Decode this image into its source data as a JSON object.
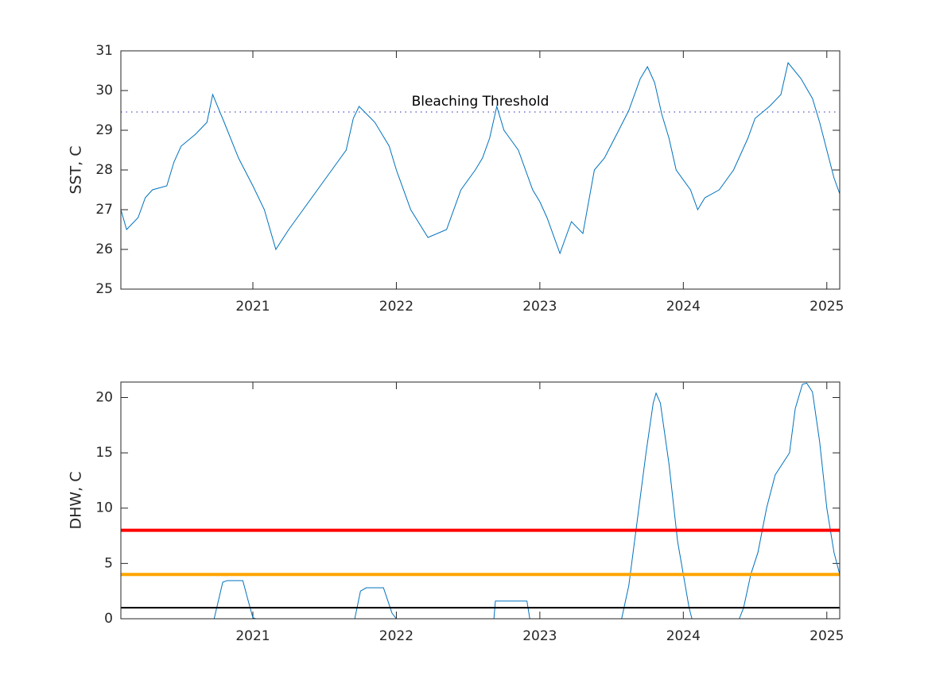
{
  "chart_data": [
    {
      "type": "line",
      "ylabel": "SST, C",
      "x": [
        2020.08,
        2020.12,
        2020.2,
        2020.25,
        2020.3,
        2020.4,
        2020.45,
        2020.5,
        2020.6,
        2020.68,
        2020.72,
        2020.8,
        2020.9,
        2021.0,
        2021.08,
        2021.16,
        2021.25,
        2021.35,
        2021.45,
        2021.55,
        2021.65,
        2021.7,
        2021.74,
        2021.85,
        2021.95,
        2022.0,
        2022.1,
        2022.22,
        2022.35,
        2022.45,
        2022.55,
        2022.6,
        2022.65,
        2022.7,
        2022.75,
        2022.85,
        2022.95,
        2023.0,
        2023.05,
        2023.14,
        2023.22,
        2023.3,
        2023.38,
        2023.45,
        2023.55,
        2023.62,
        2023.7,
        2023.75,
        2023.8,
        2023.85,
        2023.9,
        2023.95,
        2024.05,
        2024.1,
        2024.15,
        2024.25,
        2024.35,
        2024.45,
        2024.5,
        2024.6,
        2024.68,
        2024.73,
        2024.82,
        2024.9,
        2024.95,
        2025.0,
        2025.05,
        2025.09
      ],
      "series": [
        {
          "color": "#0072bd",
          "values": [
            27.0,
            26.5,
            26.8,
            27.3,
            27.5,
            27.6,
            28.2,
            28.6,
            28.9,
            29.2,
            29.9,
            29.2,
            28.3,
            27.6,
            27.0,
            26.0,
            26.5,
            27.0,
            27.5,
            28.0,
            28.5,
            29.3,
            29.6,
            29.2,
            28.6,
            28.0,
            27.0,
            26.3,
            26.5,
            27.5,
            28.0,
            28.3,
            28.8,
            29.6,
            29.0,
            28.5,
            27.5,
            27.2,
            26.8,
            25.9,
            26.7,
            26.4,
            28.0,
            28.3,
            29.0,
            29.5,
            30.3,
            30.6,
            30.2,
            29.4,
            28.8,
            28.0,
            27.5,
            27.0,
            27.3,
            27.5,
            28.0,
            28.8,
            29.3,
            29.6,
            29.9,
            30.7,
            30.3,
            29.8,
            29.2,
            28.5,
            27.8,
            27.4
          ]
        }
      ],
      "threshold": {
        "value": 29.46,
        "label": "Bleaching Threshold",
        "color": "#7070d0"
      },
      "xlim": [
        2020.08,
        2025.09
      ],
      "xticks": [
        2021,
        2022,
        2023,
        2024,
        2025
      ],
      "ylim": [
        25,
        31
      ],
      "yticks": [
        25,
        26,
        27,
        28,
        29,
        30,
        31
      ]
    },
    {
      "type": "line",
      "ylabel": "DHW, C",
      "x": [
        2020.08,
        2020.73,
        2020.79,
        2020.82,
        2020.93,
        2020.97,
        2021.0,
        2021.02,
        2021.71,
        2021.75,
        2021.79,
        2021.91,
        2021.97,
        2022.0,
        2022.68,
        2022.69,
        2022.91,
        2022.93,
        2023.57,
        2023.62,
        2023.68,
        2023.74,
        2023.79,
        2023.81,
        2023.84,
        2023.9,
        2023.96,
        2024.0,
        2024.04,
        2024.06,
        2024.39,
        2024.42,
        2024.47,
        2024.52,
        2024.58,
        2024.64,
        2024.7,
        2024.74,
        2024.78,
        2024.83,
        2024.86,
        2024.9,
        2024.95,
        2025.0,
        2025.05,
        2025.09
      ],
      "series": [
        {
          "color": "#0072bd",
          "values": [
            0,
            0,
            3.3,
            3.45,
            3.45,
            1.5,
            0.1,
            0,
            0,
            2.5,
            2.8,
            2.8,
            0.5,
            0,
            0,
            1.6,
            1.6,
            0,
            0,
            3,
            9,
            15,
            19.5,
            20.4,
            19.5,
            14,
            7,
            4,
            1,
            0,
            0,
            1,
            4,
            6,
            10,
            13,
            14.2,
            15,
            19,
            21.2,
            21.3,
            20.5,
            16,
            10,
            6,
            4
          ]
        }
      ],
      "hlines": [
        {
          "value": 8,
          "color": "#ff0000"
        },
        {
          "value": 4,
          "color": "#ffa500"
        },
        {
          "value": 1,
          "color": "#000000"
        }
      ],
      "xlim": [
        2020.08,
        2025.09
      ],
      "xticks": [
        2021,
        2022,
        2023,
        2024,
        2025
      ],
      "ylim": [
        0,
        21.4
      ],
      "yticks": [
        0,
        5,
        10,
        15,
        20
      ]
    }
  ]
}
